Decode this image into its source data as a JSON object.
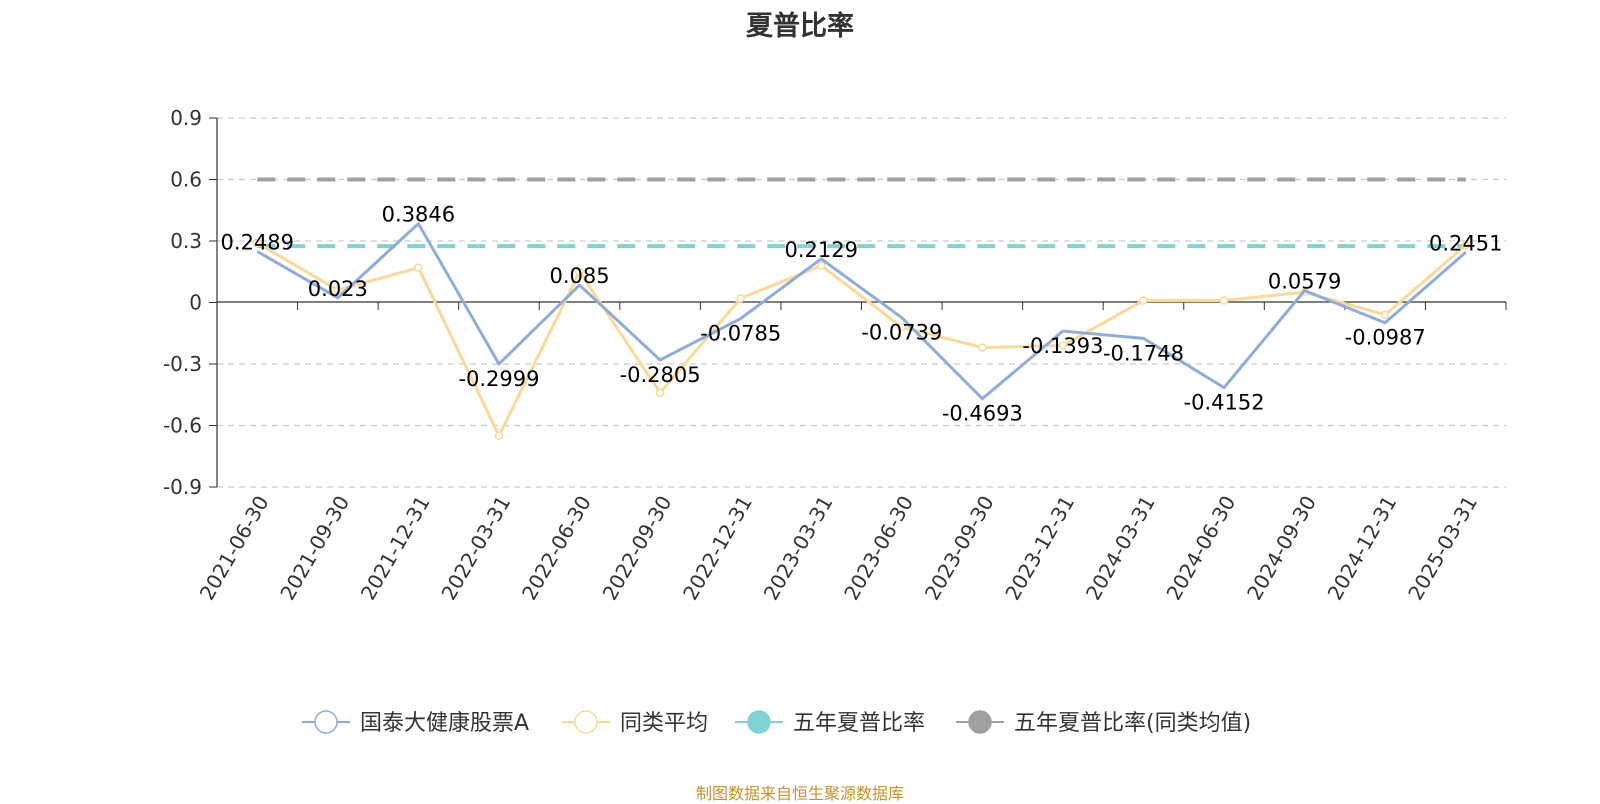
{
  "title": "夏普比率",
  "source": "制图数据来自恒生聚源数据库",
  "chart_data": {
    "type": "line",
    "title": "夏普比率",
    "xlabel": "",
    "ylabel": "",
    "ylim": [
      -0.9,
      0.9
    ],
    "yticks": [
      0.9,
      0.6,
      0.3,
      0,
      -0.3,
      -0.6,
      -0.9
    ],
    "ytick_labels": [
      "0.9",
      "0.6",
      "0.3",
      "0",
      "-0.3",
      "-0.6",
      "-0.9"
    ],
    "grid": true,
    "legend_position": "bottom",
    "categories": [
      "2021-06-30",
      "2021-09-30",
      "2021-12-31",
      "2022-03-31",
      "2022-06-30",
      "2022-09-30",
      "2022-12-31",
      "2023-03-31",
      "2023-06-30",
      "2023-09-30",
      "2023-12-31",
      "2024-03-31",
      "2024-06-30",
      "2024-09-30",
      "2024-12-31",
      "2025-03-31"
    ],
    "series": [
      {
        "name": "国泰大健康股票A",
        "color": "#8eaddb",
        "values": [
          0.2489,
          0.023,
          0.3846,
          -0.2999,
          0.085,
          -0.2805,
          -0.0785,
          0.2129,
          -0.0739,
          -0.4693,
          -0.1393,
          -0.1748,
          -0.4152,
          0.0579,
          -0.0987,
          0.2451
        ],
        "labels": [
          "0.2489",
          "0.023",
          "0.3846",
          "-0.2999",
          "0.085",
          "-0.2805",
          "-0.0785",
          "0.2129",
          "-0.0739",
          "-0.4693",
          "-0.1393",
          "-0.1748",
          "-0.4152",
          "0.0579",
          "-0.0987",
          "0.2451"
        ]
      },
      {
        "name": "同类平均",
        "color": "#fcd996",
        "values": [
          0.29,
          0.06,
          0.17,
          -0.65,
          0.15,
          -0.44,
          0.02,
          0.18,
          -0.12,
          -0.22,
          -0.21,
          0.01,
          0.01,
          0.05,
          -0.06,
          0.28
        ]
      }
    ],
    "reference_lines": [
      {
        "name": "五年夏普比率",
        "value": 0.275,
        "color": "#7fd3d4"
      },
      {
        "name": "五年夏普比率(同类均值)",
        "value": 0.6,
        "color": "#a0a0a0"
      }
    ]
  }
}
